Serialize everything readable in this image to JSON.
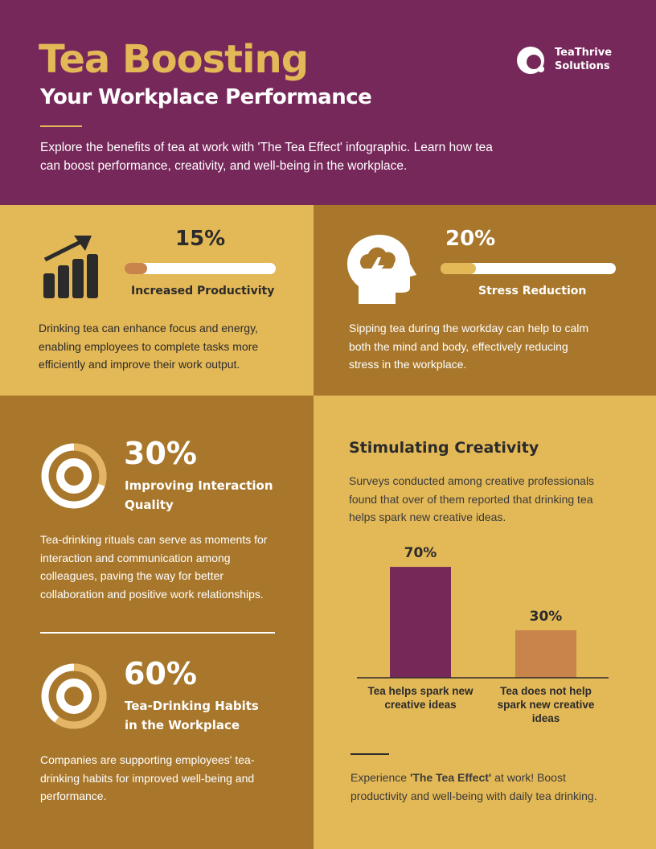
{
  "header": {
    "title": "Tea Boosting",
    "subtitle": "Your Workplace Performance",
    "intro": "Explore the benefits of tea at work with 'The Tea Effect' infographic. Learn how tea can boost performance, creativity, and well-being in the workplace.",
    "logo": [
      "TeaThrive",
      "Solutions"
    ]
  },
  "stats": [
    {
      "value": 15,
      "value_label": "15%",
      "label": "Increased Productivity",
      "text": "Drinking tea can enhance focus and energy, enabling employees to complete tasks more efficiently and improve their work output."
    },
    {
      "value": 20,
      "value_label": "20%",
      "label": "Stress Reduction",
      "text": "Sipping tea during the workday can help to calm both the mind and body, effectively reducing stress in the workplace."
    },
    {
      "value": 30,
      "value_label": "30%",
      "label": "Improving Interaction Quality",
      "text": "Tea-drinking rituals can serve as moments for interaction and communication among colleagues, paving the way for better collaboration and positive work relationships."
    },
    {
      "value": 60,
      "value_label": "60%",
      "label": "Tea-Drinking Habits in the Workplace",
      "text": "Companies are supporting employees' tea-drinking habits for improved well-being and performance."
    }
  ],
  "creativity": {
    "title": "Stimulating Creativity",
    "text": "Surveys conducted among creative professionals found that over of them reported that drinking tea helps spark new creative ideas.",
    "chart_data": {
      "type": "bar",
      "categories": [
        "Tea helps spark new creative ideas",
        "Tea does not help spark new creative ideas"
      ],
      "values": [
        70,
        30
      ],
      "value_labels": [
        "70%",
        "30%"
      ],
      "colors": [
        "#762858",
        "#c8844a"
      ]
    }
  },
  "footer": {
    "before": "Experience ",
    "emphasis": "'The Tea Effect'",
    "after": " at work! Boost productivity and well-being with daily tea drinking."
  }
}
